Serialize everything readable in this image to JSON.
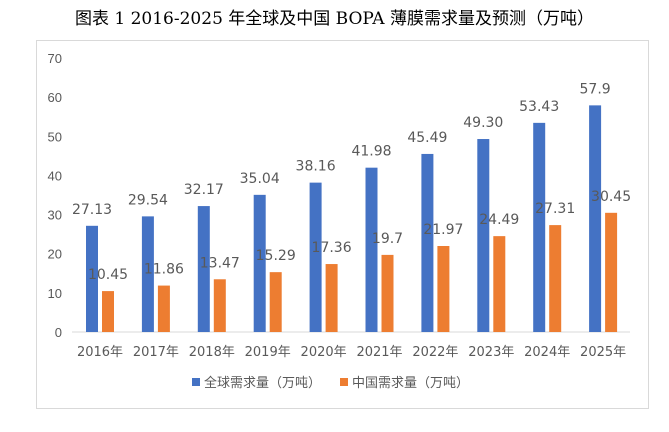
{
  "title": "图表 1 2016-2025 年全球及中国 BOPA 薄膜需求量及预测（万吨）",
  "chart_data": {
    "type": "bar",
    "title": "图表 1 2016-2025 年全球及中国 BOPA 薄膜需求量及预测（万吨）",
    "categories": [
      "2016年",
      "2017年",
      "2018年",
      "2019年",
      "2020年",
      "2021年",
      "2022年",
      "2023年",
      "2024年",
      "2025年"
    ],
    "series": [
      {
        "name": "全球需求量（万吨）",
        "color": "#4472c4",
        "values": [
          27.13,
          29.54,
          32.17,
          35.04,
          38.16,
          41.98,
          45.49,
          49.3,
          53.43,
          57.9
        ],
        "labels": [
          "27.13",
          "29.54",
          "32.17",
          "35.04",
          "38.16",
          "41.98",
          "45.49",
          "49.30",
          "53.43",
          "57.9"
        ]
      },
      {
        "name": "中国需求量（万吨）",
        "color": "#ed7d31",
        "values": [
          10.45,
          11.86,
          13.47,
          15.29,
          17.36,
          19.7,
          21.97,
          24.49,
          27.31,
          30.45
        ],
        "labels": [
          "10.45",
          "11.86",
          "13.47",
          "15.29",
          "17.36",
          "19.7",
          "21.97",
          "24.49",
          "27.31",
          "30.45"
        ]
      }
    ],
    "ylim": [
      0,
      70
    ],
    "yticks": [
      "0",
      "10",
      "20",
      "30",
      "40",
      "50",
      "60",
      "70"
    ],
    "grid": false,
    "legend": "bottom",
    "xlabel": "",
    "ylabel": ""
  }
}
